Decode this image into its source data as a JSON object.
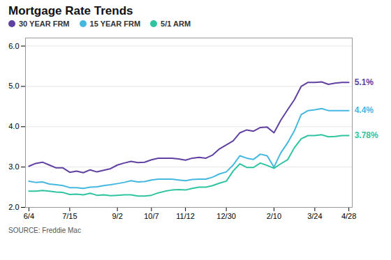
{
  "chart_data": {
    "type": "line",
    "title": "Mortgage Rate Trends",
    "caption": "SOURCE: Freddie Mac",
    "categories": [
      "6/4",
      null,
      null,
      null,
      null,
      null,
      "7/15",
      null,
      null,
      null,
      null,
      null,
      null,
      "9/2",
      null,
      null,
      null,
      null,
      "10/7",
      null,
      null,
      null,
      null,
      "11/12",
      null,
      null,
      null,
      null,
      null,
      "12/30",
      null,
      null,
      null,
      null,
      null,
      null,
      "2/10",
      null,
      null,
      null,
      null,
      null,
      "3/24",
      null,
      null,
      null,
      null,
      "4/28"
    ],
    "series": [
      {
        "name": "30 YEAR FRM",
        "color": "#6040a0",
        "values": [
          3.02,
          3.09,
          3.12,
          3.05,
          2.98,
          2.98,
          2.87,
          2.9,
          2.86,
          2.93,
          2.88,
          2.92,
          2.96,
          3.05,
          3.1,
          3.14,
          3.11,
          3.12,
          3.18,
          3.22,
          3.22,
          3.22,
          3.2,
          3.17,
          3.22,
          3.24,
          3.22,
          3.3,
          3.45,
          3.55,
          3.65,
          3.85,
          3.92,
          3.89,
          3.98,
          3.99,
          3.85,
          4.16,
          4.42,
          4.67,
          5.0,
          5.1,
          5.1,
          5.11,
          5.05,
          5.08,
          5.1,
          5.1
        ]
      },
      {
        "name": "15 YEAR FRM",
        "color": "#45b8e0",
        "values": [
          2.65,
          2.62,
          2.63,
          2.58,
          2.56,
          2.54,
          2.49,
          2.49,
          2.47,
          2.5,
          2.51,
          2.54,
          2.56,
          2.59,
          2.62,
          2.66,
          2.63,
          2.64,
          2.68,
          2.7,
          2.7,
          2.7,
          2.68,
          2.66,
          2.69,
          2.7,
          2.7,
          2.75,
          2.83,
          2.88,
          3.05,
          3.28,
          3.22,
          3.19,
          3.32,
          3.28,
          3.0,
          3.35,
          3.6,
          3.9,
          4.3,
          4.4,
          4.42,
          4.45,
          4.4,
          4.4,
          4.4,
          4.4
        ]
      },
      {
        "name": "5/1 ARM",
        "color": "#2ec4a0",
        "values": [
          2.4,
          2.4,
          2.42,
          2.4,
          2.38,
          2.37,
          2.32,
          2.33,
          2.31,
          2.35,
          2.3,
          2.31,
          2.29,
          2.3,
          2.31,
          2.31,
          2.28,
          2.28,
          2.3,
          2.36,
          2.4,
          2.43,
          2.44,
          2.43,
          2.47,
          2.5,
          2.5,
          2.54,
          2.6,
          2.65,
          2.9,
          3.08,
          2.99,
          2.99,
          3.1,
          3.04,
          2.97,
          3.08,
          3.18,
          3.48,
          3.7,
          3.78,
          3.78,
          3.8,
          3.75,
          3.76,
          3.78,
          3.78
        ]
      }
    ],
    "annotations": [
      {
        "series": "30 YEAR FRM",
        "text": "5.1%",
        "color": "#6040a0"
      },
      {
        "series": "15 YEAR FRM",
        "text": "4.4%",
        "color": "#45b8e0"
      },
      {
        "series": "5/1 ARM",
        "text": "3.78%",
        "color": "#2ec4a0"
      }
    ],
    "ylim": [
      2,
      6.2
    ],
    "yticks": [
      2,
      3,
      4,
      5,
      6
    ],
    "grid": true,
    "legend": "top"
  }
}
